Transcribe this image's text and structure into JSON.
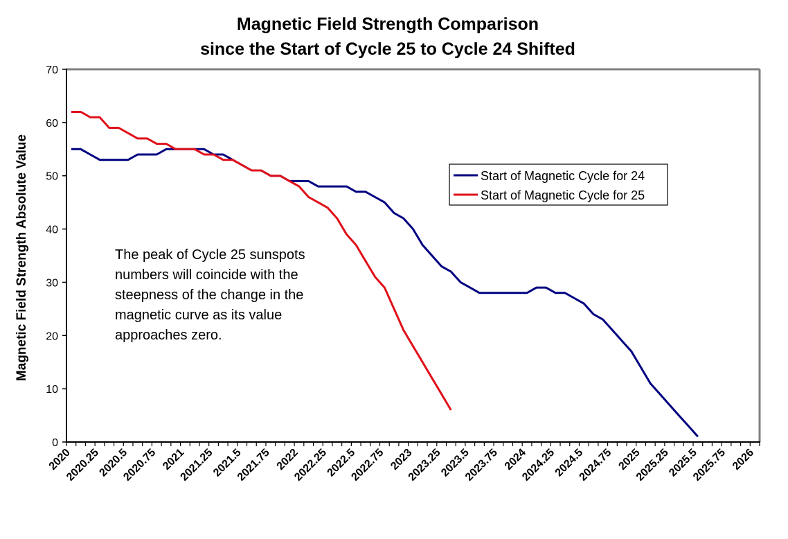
{
  "chart_data": {
    "type": "line",
    "title": [
      "Magnetic Field Strength Comparison",
      "since the Start of Cycle 25 to Cycle 24 Shifted"
    ],
    "xlabel": "",
    "ylabel": "Magnetic Field Strength Absolute Value",
    "ylim": [
      0,
      70
    ],
    "yticks": [
      0,
      10,
      20,
      30,
      40,
      50,
      60,
      70
    ],
    "x_start": 2020,
    "x_step_per_point": 0.0833,
    "x_category_count": 73,
    "xtick_labels": [
      "2020",
      "2020.25",
      "2020.5",
      "2020.75",
      "2021",
      "2021.25",
      "2021.5",
      "2021.75",
      "2022",
      "2022.25",
      "2022.5",
      "2022.75",
      "2023",
      "2023.25",
      "2023.5",
      "2023.75",
      "2024",
      "2024.25",
      "2024.5",
      "2024.75",
      "2025",
      "2025.25",
      "2025.5",
      "2025.75",
      "2026"
    ],
    "grid": false,
    "legend_position": "right-center",
    "series": [
      {
        "name": "Start of Magnetic Cycle for 24",
        "color": "#000080",
        "values": [
          55,
          55,
          54,
          53,
          53,
          53,
          53,
          54,
          54,
          54,
          55,
          55,
          55,
          55,
          55,
          54,
          54,
          53,
          52,
          51,
          51,
          50,
          50,
          49,
          49,
          49,
          48,
          48,
          48,
          48,
          47,
          47,
          46,
          45,
          43,
          42,
          40,
          37,
          35,
          33,
          32,
          30,
          29,
          28,
          28,
          28,
          28,
          28,
          28,
          29,
          29,
          28,
          28,
          27,
          26,
          24,
          23,
          21,
          19,
          17,
          14,
          11,
          9,
          7,
          5,
          3,
          1
        ]
      },
      {
        "name": "Start of Magnetic Cycle for 25",
        "color": "#e0101a",
        "values": [
          62,
          62,
          61,
          61,
          59,
          59,
          58,
          57,
          57,
          56,
          56,
          55,
          55,
          55,
          54,
          54,
          53,
          53,
          52,
          51,
          51,
          50,
          50,
          49,
          48,
          46,
          45,
          44,
          42,
          39,
          37,
          34,
          31,
          29,
          25,
          21,
          18,
          15,
          12,
          9,
          6
        ]
      }
    ],
    "annotations": [
      {
        "lines": [
          "The peak of Cycle 25 sunspots",
          "numbers will coincide with the",
          "steepness of the change in the",
          "magnetic curve as its value",
          "approaches zero."
        ]
      }
    ]
  }
}
